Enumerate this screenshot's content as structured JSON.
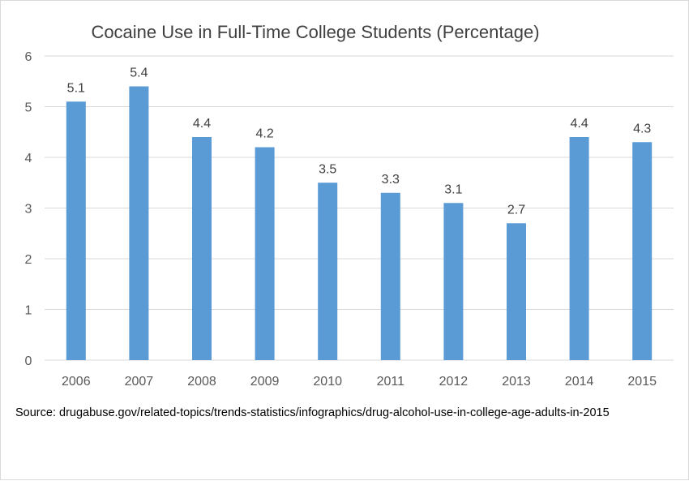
{
  "chart_data": {
    "type": "bar",
    "title": "Cocaine Use in Full-Time College Students (Percentage)",
    "xlabel": "",
    "ylabel": "",
    "categories": [
      "2006",
      "2007",
      "2008",
      "2009",
      "2010",
      "2011",
      "2012",
      "2013",
      "2014",
      "2015"
    ],
    "values": [
      5.1,
      5.4,
      4.4,
      4.2,
      3.5,
      3.3,
      3.1,
      2.7,
      4.4,
      4.3
    ],
    "ylim": [
      0,
      6
    ],
    "yticks": [
      0,
      1,
      2,
      3,
      4,
      5,
      6
    ],
    "grid": true,
    "legend": "none",
    "bar_color": "#5b9bd5",
    "grid_color": "#d9d9d9",
    "text_color": "#595959"
  },
  "source_text": "Source: drugabuse.gov/related-topics/trends-statistics/infographics/drug-alcohol-use-in-college-age-adults-in-2015"
}
